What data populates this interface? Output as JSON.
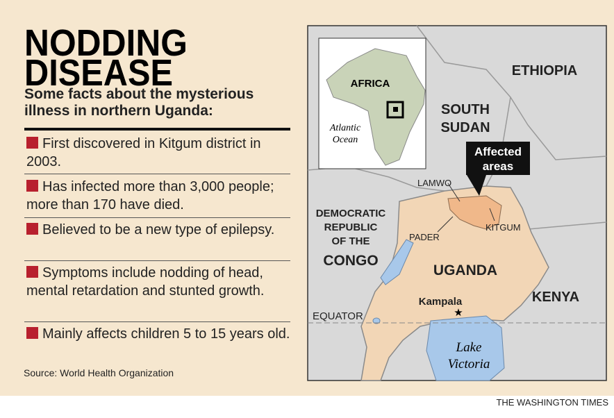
{
  "header": {
    "title_lines": [
      "NODDING",
      "DISEASE"
    ],
    "subtitle": "Some facts about the mysterious illness in northern Uganda:"
  },
  "facts": [
    "First discovered in Kitgum district in 2003.",
    "Has infected more than 3,000 people; more than 170 have died.",
    "Believed to be a new type of epilepsy.",
    "Symptoms include nodding of head, mental retardation and stunted growth.",
    "Mainly affects children 5 to 15 years old."
  ],
  "source": "Source: World Health Organization",
  "map": {
    "inset": {
      "continent": "AFRICA",
      "ocean_lines": [
        "Atlantic",
        "Ocean"
      ]
    },
    "labels": {
      "ethiopia": "ETHIOPIA",
      "south_sudan_lines": [
        "SOUTH",
        "SUDAN"
      ],
      "affected_lines": [
        "Affected",
        "areas"
      ],
      "lamwo": "LAMWO",
      "kitgum": "KITGUM",
      "pader": "PADER",
      "drc_lines": [
        "DEMOCRATIC",
        "REPUBLIC",
        "OF THE",
        "CONGO"
      ],
      "uganda": "UGANDA",
      "kampala": "Kampala",
      "kenya": "KENYA",
      "equator": "EQUATOR",
      "lake_lines": [
        "Lake",
        "Victoria"
      ]
    }
  },
  "credit": "THE WASHINGTON TIMES"
}
